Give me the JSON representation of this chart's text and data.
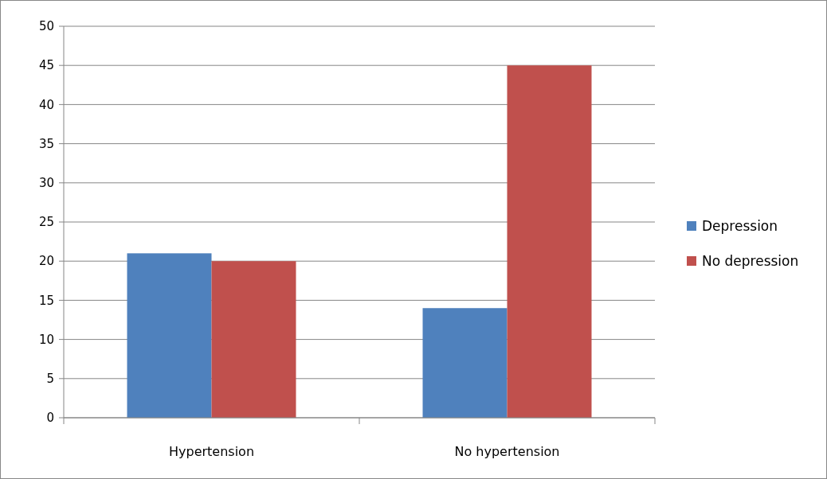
{
  "chart_data": {
    "type": "bar",
    "categories": [
      "Hypertension",
      "No hypertension"
    ],
    "series": [
      {
        "name": "Depression",
        "color": "#4f81bd",
        "values": [
          21,
          14
        ]
      },
      {
        "name": "No depression",
        "color": "#c0504d",
        "values": [
          20,
          45
        ]
      }
    ],
    "ylim": [
      0,
      50
    ],
    "yticks": [
      0,
      5,
      10,
      15,
      20,
      25,
      30,
      35,
      40,
      45,
      50
    ],
    "grid": "y",
    "legend": "right"
  }
}
